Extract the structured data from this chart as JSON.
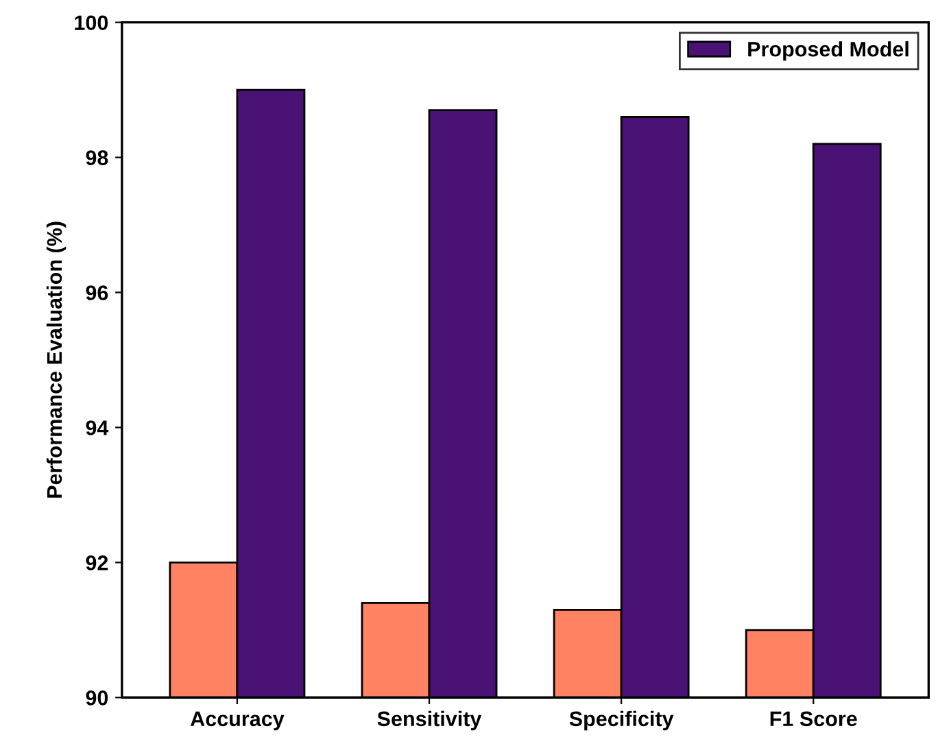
{
  "chart_data": {
    "type": "bar",
    "ylabel": "Performance Evaluation (%)",
    "categories": [
      "Accuracy",
      "Sensitivity",
      "Specificity",
      "F1 Score"
    ],
    "series": [
      {
        "color": "#ff8363",
        "values": [
          92.0,
          91.4,
          91.3,
          91.0
        ]
      },
      {
        "name": "Proposed Model",
        "color": "#4b1275",
        "values": [
          99.0,
          98.7,
          98.6,
          98.2
        ]
      }
    ],
    "ylim": [
      90,
      100
    ],
    "yticks": [
      90,
      92,
      94,
      96,
      98,
      100
    ],
    "grid": false,
    "legend": "top right"
  }
}
